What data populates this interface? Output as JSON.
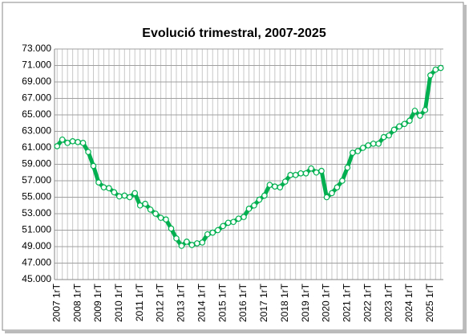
{
  "chart_data": {
    "type": "line",
    "title": "Evolució trimestral, 2007-2025",
    "categories": [
      "2007 1rT",
      null,
      null,
      null,
      "2008 1rT",
      null,
      null,
      null,
      "2009 1rT",
      null,
      null,
      null,
      "2010 1rT",
      null,
      null,
      null,
      "2011 1rT",
      null,
      null,
      null,
      "2012 1rT",
      null,
      null,
      null,
      "2013 1rT",
      null,
      null,
      null,
      "2014 1rT",
      null,
      null,
      null,
      "2015 1rT",
      null,
      null,
      null,
      "2016 1rT",
      null,
      null,
      null,
      "2017 1rT",
      null,
      null,
      null,
      "2018 1rT",
      null,
      null,
      null,
      "2019 1rT",
      null,
      null,
      null,
      "2020 1rT",
      null,
      null,
      null,
      "2021 1rT",
      null,
      null,
      null,
      "2022 1rT",
      null,
      null,
      null,
      "2023 1rT",
      null,
      null,
      null,
      "2024 1rT",
      null,
      null,
      null,
      "2025 1rT",
      null,
      null
    ],
    "values": [
      61200,
      62000,
      61600,
      61800,
      61700,
      61600,
      60500,
      58800,
      56800,
      56200,
      56100,
      55600,
      55100,
      55200,
      55000,
      55500,
      54000,
      54200,
      53500,
      53000,
      52500,
      52300,
      51200,
      50000,
      49100,
      49600,
      49200,
      49400,
      49500,
      50500,
      50700,
      51000,
      51500,
      51900,
      52000,
      52400,
      52600,
      53600,
      54000,
      54700,
      55200,
      56500,
      56300,
      56200,
      56900,
      57700,
      57700,
      57900,
      57900,
      58500,
      58000,
      58200,
      55000,
      55500,
      56200,
      57000,
      58600,
      60400,
      60600,
      61000,
      61300,
      61500,
      61500,
      62300,
      62500,
      63200,
      63600,
      63900,
      64300,
      65500,
      64900,
      65600,
      69800,
      70500,
      70700
    ],
    "color": "#00b050",
    "ylim": [
      45000,
      73000
    ],
    "yticks": [
      {
        "value": 45000,
        "label": "45.000"
      },
      {
        "value": 47000,
        "label": "47.000"
      },
      {
        "value": 49000,
        "label": "49.000"
      },
      {
        "value": 51000,
        "label": "51.000"
      },
      {
        "value": 53000,
        "label": "53.000"
      },
      {
        "value": 55000,
        "label": "55.000"
      },
      {
        "value": 57000,
        "label": "57.000"
      },
      {
        "value": 59000,
        "label": "59.000"
      },
      {
        "value": 61000,
        "label": "61.000"
      },
      {
        "value": 63000,
        "label": "63.000"
      },
      {
        "value": 65000,
        "label": "65.000"
      },
      {
        "value": 67000,
        "label": "67.000"
      },
      {
        "value": 69000,
        "label": "69.000"
      },
      {
        "value": 71000,
        "label": "71.000"
      },
      {
        "value": 73000,
        "label": "73.000"
      }
    ],
    "grid": true
  }
}
